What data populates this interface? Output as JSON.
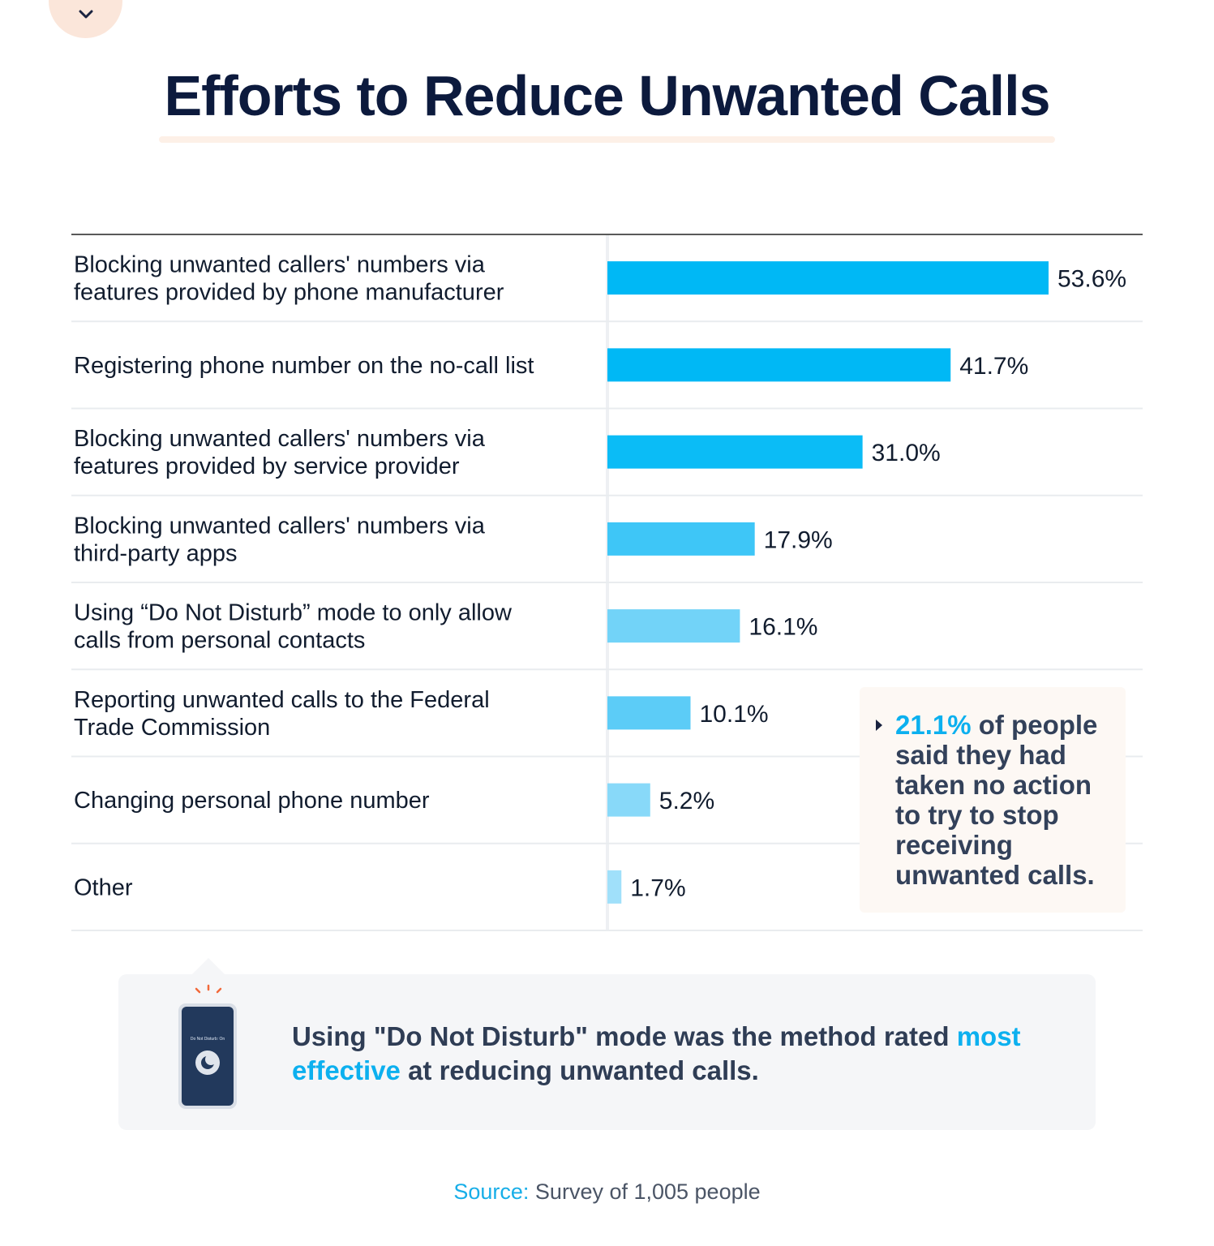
{
  "title": "Efforts to Reduce Unwanted Calls",
  "chart_data": {
    "type": "bar",
    "orientation": "horizontal",
    "title": "Efforts to Reduce Unwanted Calls",
    "categories": [
      [
        "Blocking unwanted callers' numbers via",
        "features provided by phone manufacturer"
      ],
      [
        "Registering phone number on the no-call list"
      ],
      [
        "Blocking unwanted callers' numbers via",
        "features provided by service provider"
      ],
      [
        "Blocking unwanted callers' numbers via",
        "third-party apps"
      ],
      [
        "Using “Do Not Disturb” mode to only allow",
        "calls from personal contacts"
      ],
      [
        "Reporting unwanted calls to the Federal",
        "Trade Commission"
      ],
      [
        "Changing personal phone number"
      ],
      [
        "Other"
      ]
    ],
    "values": [
      53.6,
      41.7,
      31.0,
      17.9,
      16.1,
      10.1,
      5.2,
      1.7
    ],
    "value_labels": [
      "53.6%",
      "41.7%",
      "31.0%",
      "17.9%",
      "16.1%",
      "10.1%",
      "5.2%",
      "1.7%"
    ],
    "bar_colors": [
      "#00b8f5",
      "#00b8f5",
      "#0bbcf6",
      "#3ec6f7",
      "#72d3f8",
      "#5cccf7",
      "#88d9f9",
      "#a0e0fa"
    ],
    "xlim": [
      0,
      53.6
    ],
    "grid": false,
    "legend": "none"
  },
  "callout": {
    "highlight": "21.1%",
    "text": " of people said they had taken no action to try to stop receiving unwanted calls."
  },
  "note": {
    "phone_screen_text": "Do Not Disturb: On",
    "text_before": "Using \"Do Not Disturb\" mode was the method rated ",
    "highlight": "most effective",
    "text_after": " at reducing unwanted calls."
  },
  "source": {
    "label": "Source:",
    "text": " Survey of 1,005 people"
  },
  "icons": [
    "chevron-down-icon",
    "caret-right-icon",
    "phone-icon",
    "moon-icon"
  ]
}
